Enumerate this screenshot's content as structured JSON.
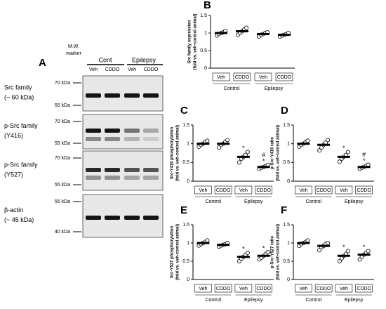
{
  "blot": {
    "label": "A",
    "marker_header": [
      "M.W.",
      "marker"
    ],
    "groups": [
      "Cont",
      "Epilepsy"
    ],
    "lanes": [
      "Veh",
      "CDDO",
      "Veh",
      "CDDO"
    ],
    "rows": [
      {
        "name": [
          "Src family",
          "(~ 60 kDa)"
        ],
        "mw": [
          "70 kDa",
          "55 kDa"
        ]
      },
      {
        "name": [
          "p-Src family",
          "(Y416)"
        ],
        "mw": [
          "70 kDa",
          "55 kDa"
        ]
      },
      {
        "name": [
          "p-Src family",
          "(Y527)"
        ],
        "mw": [
          "70 kDa",
          "55 kDa"
        ]
      },
      {
        "name": [
          "β-actin",
          "(~ 45 kDa)"
        ],
        "mw": [
          "55 kDa",
          "40 kDa"
        ]
      }
    ]
  },
  "chart_data": [
    {
      "type": "dot",
      "label": "B",
      "ylabel": [
        "Src family expression",
        "(fold vs. veh-control animal)"
      ],
      "categories": [
        "Veh",
        "CDDO",
        "Veh",
        "CDDO"
      ],
      "groups": [
        "Control",
        "Epilepsy"
      ],
      "means": [
        1.0,
        1.05,
        0.97,
        0.95
      ],
      "points": [
        [
          0.93,
          0.97,
          1.0,
          1.02,
          1.06
        ],
        [
          0.95,
          1.0,
          1.05,
          1.1,
          1.15
        ],
        [
          0.9,
          0.95,
          0.97,
          1.0,
          1.02
        ],
        [
          0.9,
          0.93,
          0.95,
          0.97,
          1.0
        ]
      ],
      "markers": [
        null,
        null,
        null,
        null
      ],
      "ylim": [
        0,
        1.5
      ],
      "yticks": [
        0,
        0.5,
        1,
        1.5
      ]
    },
    {
      "type": "dot",
      "label": "C",
      "ylabel": [
        "Src-Y416 phosphorylation",
        "(fold vs. veh-control animal)"
      ],
      "categories": [
        "Veh",
        "CDDO",
        "Veh",
        "CDDO"
      ],
      "groups": [
        "Control",
        "Epilepsy"
      ],
      "means": [
        1.0,
        1.0,
        0.65,
        0.38
      ],
      "points": [
        [
          0.92,
          0.97,
          1.0,
          1.05,
          1.08
        ],
        [
          0.9,
          0.97,
          1.0,
          1.05,
          1.1
        ],
        [
          0.5,
          0.6,
          0.65,
          0.7,
          0.78
        ],
        [
          0.33,
          0.36,
          0.38,
          0.4,
          0.43
        ]
      ],
      "markers": [
        null,
        null,
        [
          "*"
        ],
        [
          "#",
          "*"
        ]
      ],
      "ylim": [
        0,
        1.5
      ],
      "yticks": [
        0,
        0.5,
        1,
        1.5
      ]
    },
    {
      "type": "dot",
      "label": "D",
      "ylabel": [
        "p-Src-Y416 ratio",
        "(fold vs. veh-control animal)"
      ],
      "categories": [
        "Veh",
        "CDDO",
        "Veh",
        "CDDO"
      ],
      "groups": [
        "Control",
        "Epilepsy"
      ],
      "means": [
        1.0,
        0.97,
        0.65,
        0.38
      ],
      "points": [
        [
          0.92,
          0.97,
          1.0,
          1.04,
          1.08
        ],
        [
          0.82,
          0.9,
          0.97,
          1.03,
          1.1
        ],
        [
          0.52,
          0.6,
          0.65,
          0.7,
          0.78
        ],
        [
          0.33,
          0.36,
          0.38,
          0.41,
          0.44
        ]
      ],
      "markers": [
        null,
        null,
        [
          "*"
        ],
        [
          "#",
          "*"
        ]
      ],
      "ylim": [
        0,
        1.5
      ],
      "yticks": [
        0,
        0.5,
        1,
        1.5
      ]
    },
    {
      "type": "dot",
      "label": "E",
      "ylabel": [
        "Src-Y527 phosphorylation",
        "(fold vs. veh-control animal)"
      ],
      "categories": [
        "Veh",
        "CDDO",
        "Veh",
        "CDDO"
      ],
      "groups": [
        "Control",
        "Epilepsy"
      ],
      "means": [
        1.0,
        0.95,
        0.62,
        0.65
      ],
      "points": [
        [
          0.93,
          0.97,
          1.0,
          1.03,
          1.07
        ],
        [
          0.9,
          0.93,
          0.95,
          0.97,
          1.0
        ],
        [
          0.5,
          0.57,
          0.62,
          0.67,
          0.73
        ],
        [
          0.55,
          0.6,
          0.65,
          0.7,
          0.75
        ]
      ],
      "markers": [
        null,
        null,
        [
          "*"
        ],
        [
          "*"
        ]
      ],
      "ylim": [
        0,
        1.5
      ],
      "yticks": [
        0,
        0.5,
        1,
        1.5
      ]
    },
    {
      "type": "dot",
      "label": "F",
      "ylabel": [
        "p-Src-Y527 ratio",
        "(fold vs. veh-control animal)"
      ],
      "categories": [
        "Veh",
        "CDDO",
        "Veh",
        "CDDO"
      ],
      "groups": [
        "Control",
        "Epilepsy"
      ],
      "means": [
        1.0,
        0.92,
        0.65,
        0.68
      ],
      "points": [
        [
          0.92,
          0.97,
          1.0,
          1.03,
          1.07
        ],
        [
          0.8,
          0.88,
          0.92,
          0.97,
          1.0
        ],
        [
          0.5,
          0.58,
          0.65,
          0.7,
          0.78
        ],
        [
          0.55,
          0.62,
          0.68,
          0.73,
          0.78
        ]
      ],
      "markers": [
        null,
        null,
        [
          "*"
        ],
        [
          "*"
        ]
      ],
      "ylim": [
        0,
        1.5
      ],
      "yticks": [
        0,
        0.5,
        1,
        1.5
      ]
    }
  ]
}
